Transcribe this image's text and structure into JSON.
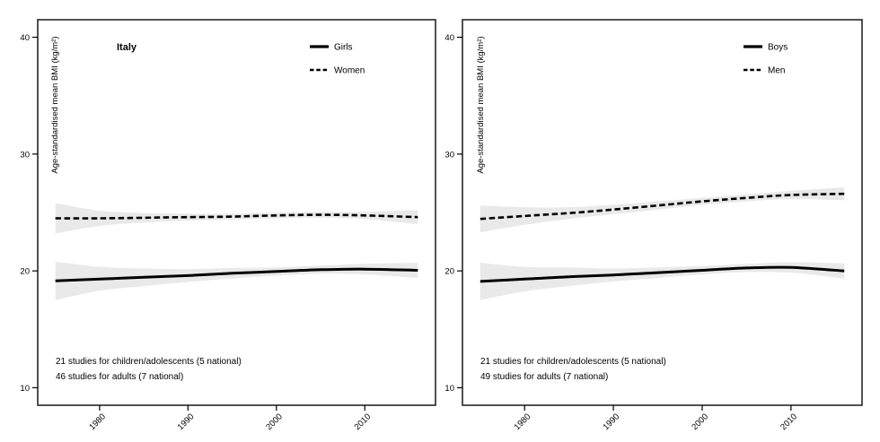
{
  "figure": {
    "country": "Italy",
    "background": "#ffffff",
    "colors": {
      "line": "#000000",
      "ci_band": "#e9e9e9",
      "text": "#000000",
      "panel_border": "#262626"
    }
  },
  "chart_data": [
    {
      "type": "line",
      "panel": "girls-and-women",
      "title": "Italy",
      "ylabel": "Age-standardised mean BMI (kg/m²)",
      "xlabel": "",
      "x_ticks": [
        "1980",
        "1990",
        "2000",
        "2010"
      ],
      "y_ticks": [
        10,
        20,
        30,
        40
      ],
      "x_range": [
        1973,
        2018
      ],
      "y_range": [
        8.5,
        41.5
      ],
      "grid": false,
      "legend_position": "top-right",
      "x": [
        1975,
        1980,
        1985,
        1990,
        1995,
        2000,
        2005,
        2010,
        2016
      ],
      "series": [
        {
          "name": "Girls",
          "line_style": "solid",
          "values": [
            19.15,
            19.3,
            19.45,
            19.6,
            19.8,
            19.95,
            20.1,
            20.15,
            20.05
          ],
          "lower": [
            17.5,
            18.3,
            18.7,
            19.05,
            19.35,
            19.6,
            19.75,
            19.7,
            19.4
          ],
          "upper": [
            20.8,
            20.35,
            20.2,
            20.15,
            20.25,
            20.3,
            20.45,
            20.6,
            20.7
          ]
        },
        {
          "name": "Women",
          "line_style": "dashed",
          "values": [
            24.5,
            24.5,
            24.55,
            24.6,
            24.65,
            24.75,
            24.8,
            24.75,
            24.6
          ],
          "lower": [
            23.2,
            23.85,
            24.15,
            24.3,
            24.4,
            24.5,
            24.55,
            24.45,
            24.0
          ],
          "upper": [
            25.8,
            25.15,
            24.95,
            24.9,
            24.9,
            25.0,
            25.05,
            25.05,
            25.2
          ]
        }
      ],
      "annotations": [
        "21 studies for children/adolescents (5 national)",
        "46 studies for adults (7 national)"
      ]
    },
    {
      "type": "line",
      "panel": "boys-and-men",
      "title": "",
      "ylabel": "Age-standardised mean BMI (kg/m²)",
      "xlabel": "",
      "x_ticks": [
        "1980",
        "1990",
        "2000",
        "2010"
      ],
      "y_ticks": [
        10,
        20,
        30,
        40
      ],
      "x_range": [
        1973,
        2018
      ],
      "y_range": [
        8.5,
        41.5
      ],
      "grid": false,
      "legend_position": "top-right",
      "x": [
        1975,
        1980,
        1985,
        1990,
        1995,
        2000,
        2005,
        2010,
        2016
      ],
      "series": [
        {
          "name": "Boys",
          "line_style": "solid",
          "values": [
            19.1,
            19.3,
            19.5,
            19.65,
            19.85,
            20.05,
            20.25,
            20.3,
            20.0
          ],
          "lower": [
            17.5,
            18.25,
            18.7,
            19.1,
            19.4,
            19.7,
            19.9,
            19.85,
            19.35
          ],
          "upper": [
            20.7,
            20.35,
            20.3,
            20.2,
            20.3,
            20.4,
            20.6,
            20.75,
            20.65
          ]
        },
        {
          "name": "Men",
          "line_style": "dashed",
          "values": [
            24.45,
            24.7,
            24.95,
            25.25,
            25.6,
            25.95,
            26.25,
            26.5,
            26.6
          ],
          "lower": [
            23.3,
            23.95,
            24.45,
            24.85,
            25.25,
            25.65,
            25.95,
            26.15,
            26.05
          ],
          "upper": [
            25.6,
            25.45,
            25.45,
            25.65,
            25.95,
            26.25,
            26.55,
            26.85,
            27.15
          ]
        }
      ],
      "annotations": [
        "21 studies for children/adolescents (5 national)",
        "49 studies for adults (7 national)"
      ]
    }
  ]
}
